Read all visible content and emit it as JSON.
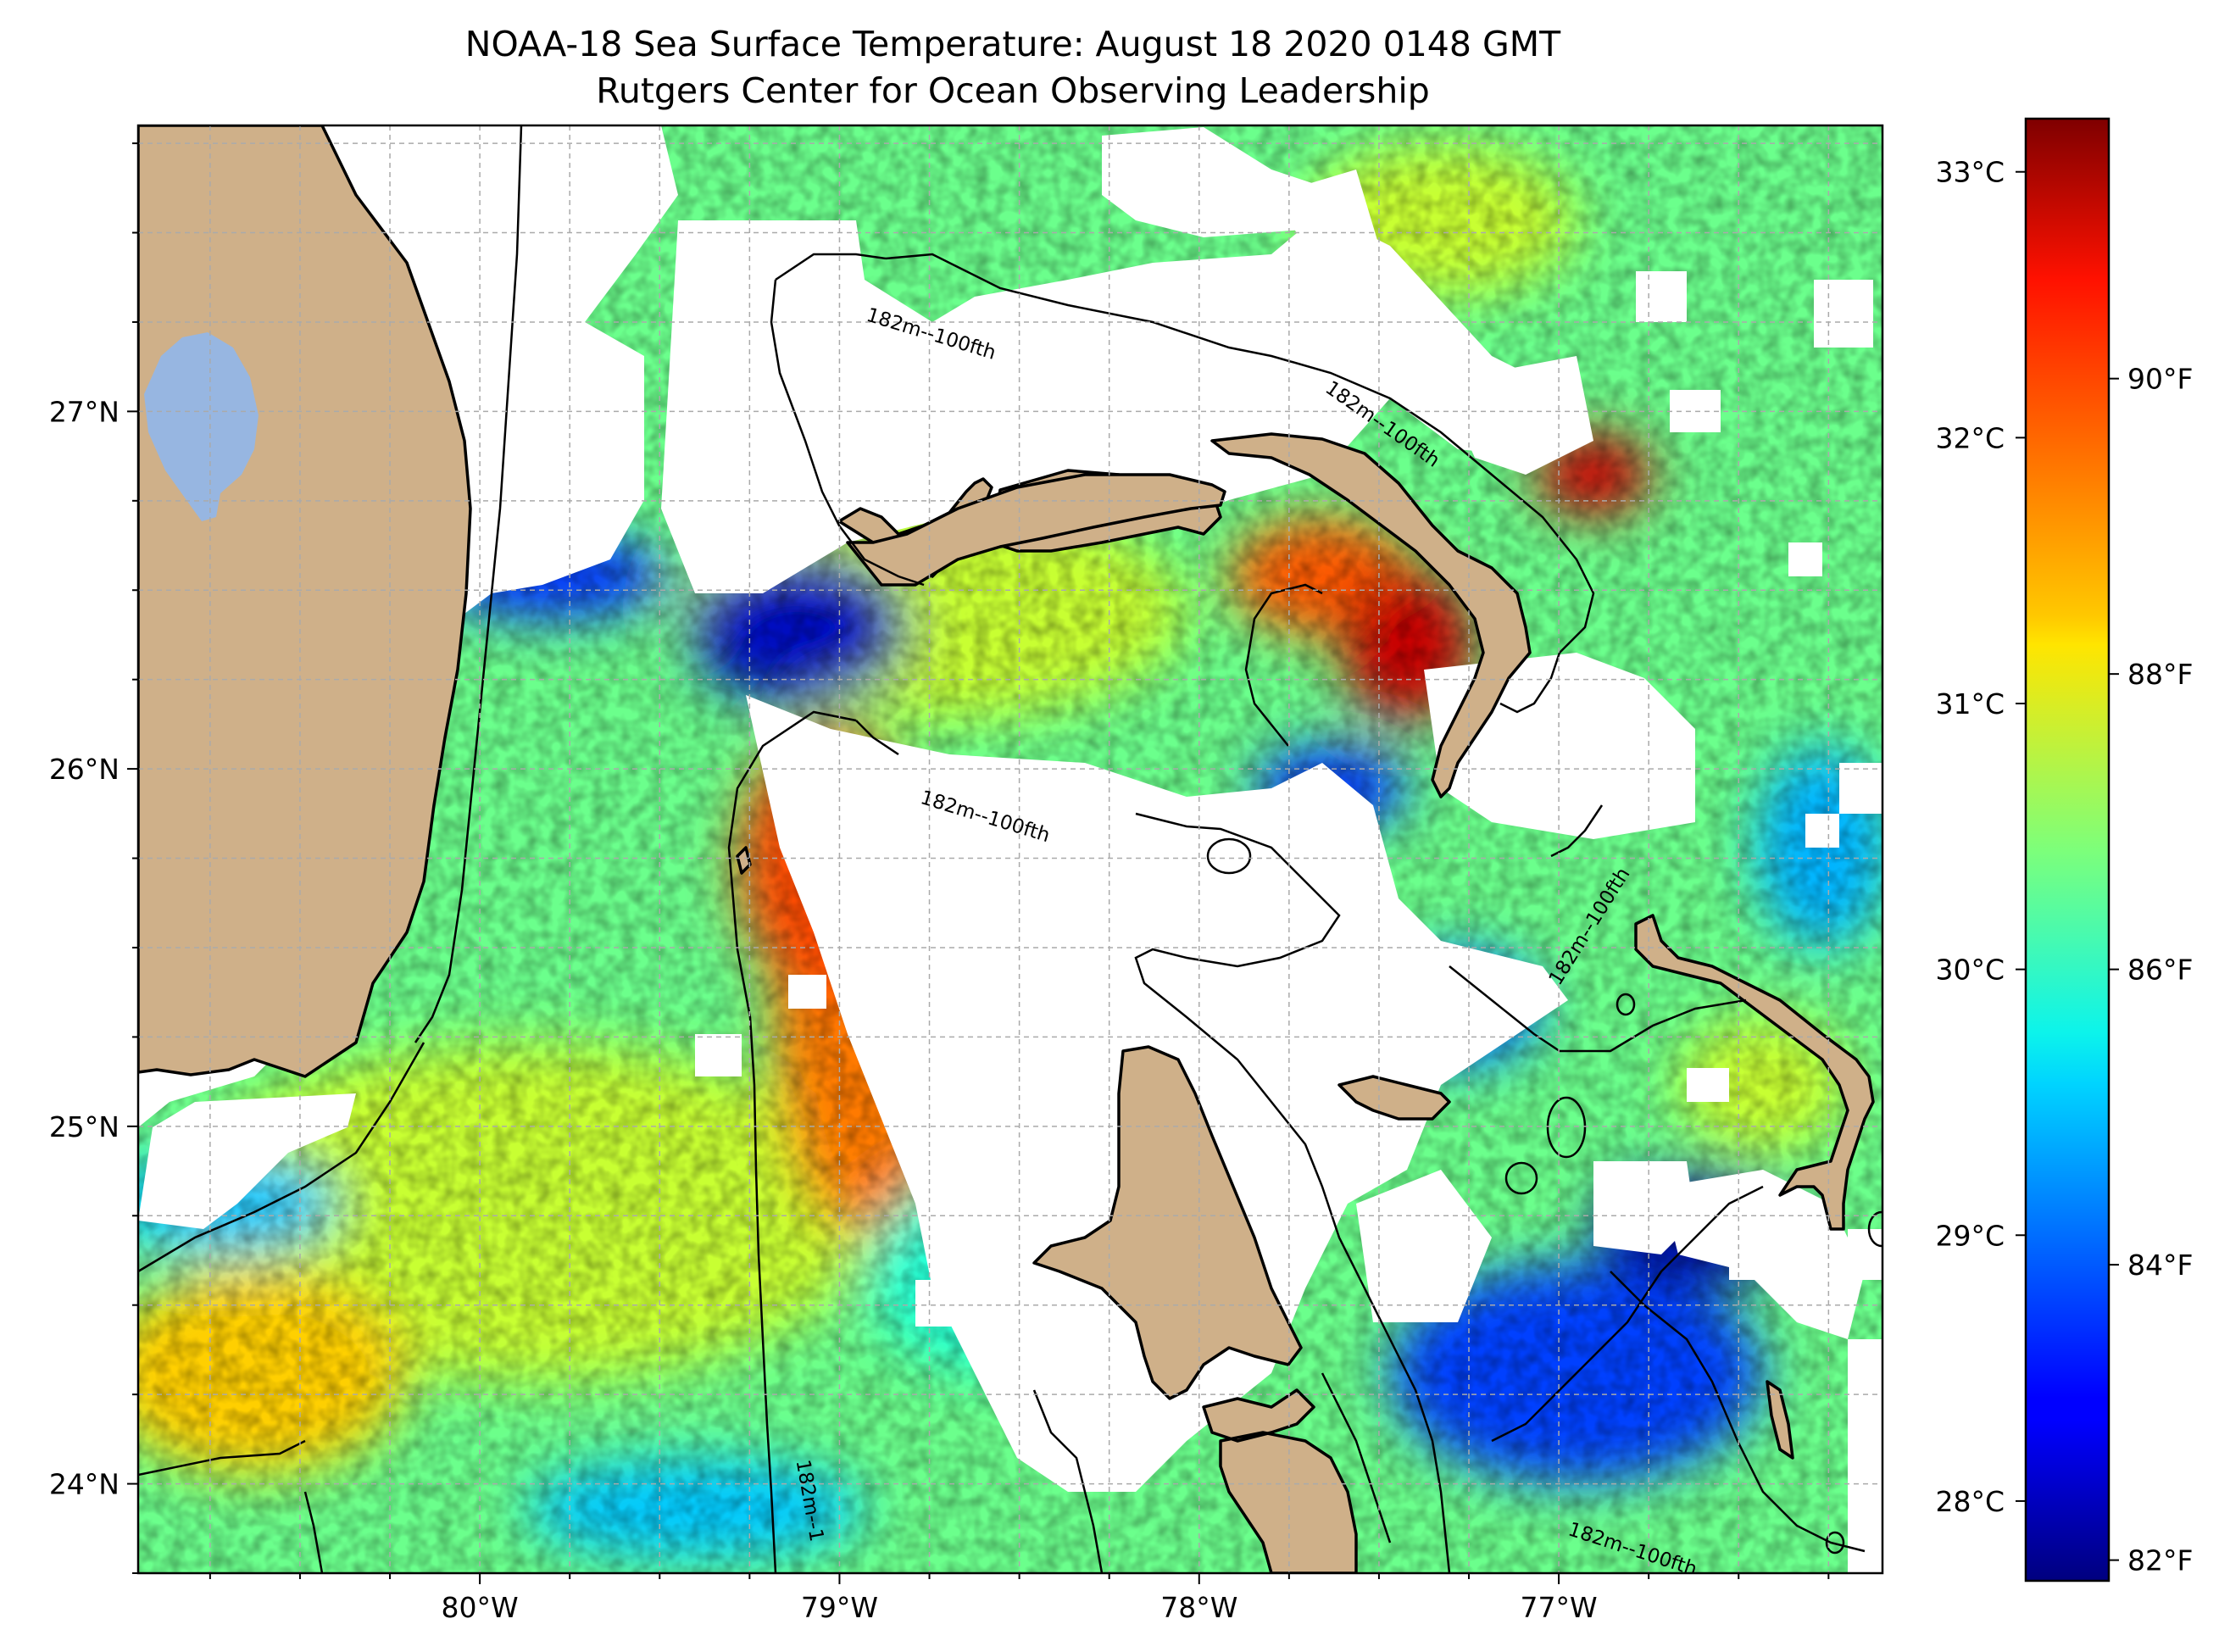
{
  "title": {
    "line1": "NOAA-18 Sea Surface Temperature: August 18 2020 0148 GMT",
    "line2": "Rutgers Center for Ocean Observing Leadership"
  },
  "map": {
    "lon_range": [
      -80.95,
      -76.1
    ],
    "lat_range": [
      23.75,
      27.8
    ],
    "lat_ticks": [
      {
        "value": 24,
        "label": "24°N"
      },
      {
        "value": 25,
        "label": "25°N"
      },
      {
        "value": 26,
        "label": "26°N"
      },
      {
        "value": 27,
        "label": "27°N"
      }
    ],
    "lon_ticks": [
      {
        "value": -80,
        "label": "80°W"
      },
      {
        "value": -79,
        "label": "79°W"
      },
      {
        "value": -78,
        "label": "78°W"
      },
      {
        "value": -77,
        "label": "77°W"
      }
    ],
    "grid": true,
    "land_color": "#cfb089",
    "lake_color": "#97b6e1",
    "cloud_mask_color": "#ffffff",
    "contour_labels": [
      {
        "text": "182m--100fth",
        "lon": -78.75,
        "lat": 27.2,
        "rotate": 17
      },
      {
        "text": "182m--100fth",
        "lon": -77.5,
        "lat": 26.95,
        "rotate": 35
      },
      {
        "text": "182m--100fth",
        "lon": -78.6,
        "lat": 25.85,
        "rotate": 17
      },
      {
        "text": "182m--100fth",
        "lon": -76.9,
        "lat": 25.55,
        "rotate": -58
      },
      {
        "text": "182m--1",
        "lon": -79.1,
        "lat": 23.95,
        "rotate": 80
      },
      {
        "text": "182m--100fth",
        "lon": -76.8,
        "lat": 23.8,
        "rotate": 18
      }
    ]
  },
  "colorbar": {
    "colormap": "jet",
    "celsius_range": [
      27.7,
      33.2
    ],
    "celsius_ticks": [
      {
        "value": 28,
        "label": "28°C"
      },
      {
        "value": 29,
        "label": "29°C"
      },
      {
        "value": 30,
        "label": "30°C"
      },
      {
        "value": 31,
        "label": "31°C"
      },
      {
        "value": 32,
        "label": "32°C"
      },
      {
        "value": 33,
        "label": "33°C"
      }
    ],
    "fahrenheit_ticks": [
      {
        "value": 82,
        "label": "82°F"
      },
      {
        "value": 84,
        "label": "84°F"
      },
      {
        "value": 86,
        "label": "86°F"
      },
      {
        "value": 88,
        "label": "88°F"
      },
      {
        "value": 90,
        "label": "90°F"
      }
    ]
  }
}
